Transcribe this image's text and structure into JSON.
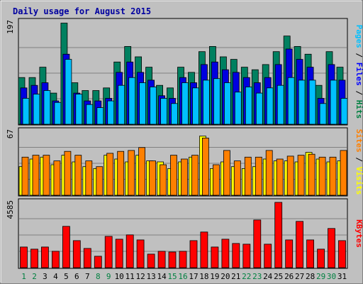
{
  "chart_data": {
    "title": "Daily usage for August 2015",
    "days": [
      "1",
      "2",
      "3",
      "4",
      "5",
      "6",
      "7",
      "8",
      "9",
      "10",
      "11",
      "12",
      "13",
      "14",
      "15",
      "16",
      "17",
      "18",
      "19",
      "20",
      "21",
      "22",
      "23",
      "24",
      "25",
      "26",
      "27",
      "28",
      "29",
      "30",
      "31"
    ],
    "weekend_days": [
      "1",
      "2",
      "8",
      "9",
      "15",
      "16",
      "22",
      "23",
      "29",
      "30"
    ],
    "panels": [
      {
        "type": "bar",
        "max_label": "197",
        "ylim": [
          0,
          197
        ],
        "side_label": [
          "Pages",
          "Files",
          "Hits"
        ],
        "side_colors": [
          "#00c0ff",
          "#0000ff",
          "#008040"
        ],
        "series": [
          {
            "name": "Hits",
            "color": "#008060",
            "values": [
              90,
              90,
              110,
              60,
              195,
              80,
              65,
              65,
              70,
              120,
              150,
              130,
              110,
              75,
              70,
              110,
              100,
              140,
              150,
              130,
              125,
              110,
              105,
              115,
              140,
              170,
              150,
              135,
              75,
              140,
              110
            ]
          },
          {
            "name": "Files",
            "color": "#0000e0",
            "values": [
              70,
              75,
              80,
              45,
              135,
              60,
              45,
              45,
              50,
              100,
              120,
              100,
              85,
              55,
              50,
              90,
              80,
              115,
              120,
              105,
              100,
              90,
              80,
              90,
              115,
              145,
              125,
              110,
              50,
              115,
              85
            ]
          },
          {
            "name": "Pages",
            "color": "#00c0ff",
            "values": [
              50,
              58,
              65,
              42,
              125,
              58,
              38,
              32,
              45,
              75,
              90,
              80,
              72,
              50,
              40,
              80,
              70,
              85,
              88,
              80,
              62,
              72,
              60,
              70,
              75,
              90,
              85,
              85,
              40,
              85,
              50
            ]
          }
        ]
      },
      {
        "type": "bar",
        "max_label": "67",
        "ylim": [
          0,
          67
        ],
        "side_label": [
          "Sites",
          "Visits"
        ],
        "side_colors": [
          "#ff8000",
          "#ffff00"
        ],
        "series": [
          {
            "name": "Visits",
            "color": "#ffff00",
            "values": [
              30,
              38,
              40,
              32,
              42,
              35,
              30,
              28,
              42,
              38,
              35,
              42,
              36,
              35,
              28,
              35,
              40,
              62,
              28,
              35,
              30,
              28,
              30,
              38,
              36,
              36,
              35,
              45,
              38,
              35,
              36
            ]
          },
          {
            "name": "Sites",
            "color": "#ff8000",
            "values": [
              40,
              42,
              42,
              36,
              46,
              42,
              36,
              30,
              44,
              46,
              47,
              50,
              36,
              32,
              42,
              38,
              42,
              60,
              32,
              47,
              36,
              40,
              40,
              47,
              38,
              41,
              42,
              43,
              40,
              40,
              47
            ]
          }
        ]
      },
      {
        "type": "bar",
        "max_label": "4585",
        "ylim": [
          0,
          4585
        ],
        "side_label": [
          "KBytes"
        ],
        "side_colors": [
          "#ff0000"
        ],
        "series": [
          {
            "name": "KBytes",
            "color": "#ff0000",
            "values": [
              1450,
              1300,
              1450,
              1150,
              2900,
              1900,
              1350,
              800,
              2200,
              2000,
              2300,
              1950,
              950,
              1150,
              1100,
              1150,
              1900,
              2500,
              1450,
              2000,
              1700,
              1650,
              3350,
              1650,
              4585,
              1950,
              3250,
              1950,
              1300,
              2750,
              1900
            ]
          }
        ]
      }
    ]
  }
}
